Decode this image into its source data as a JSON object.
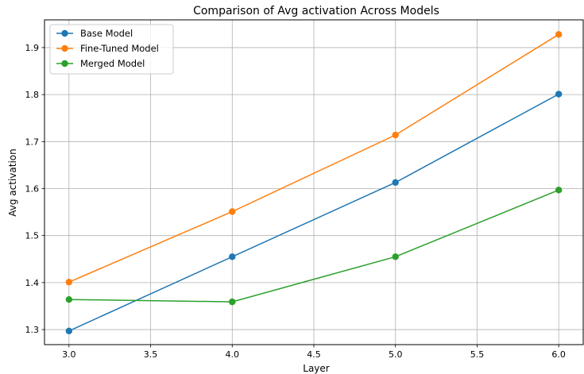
{
  "chart_data": {
    "type": "line",
    "title": "Comparison of Avg activation Across Models",
    "xlabel": "Layer",
    "ylabel": "Avg activation",
    "x": [
      3.0,
      4.0,
      5.0,
      6.0
    ],
    "xlim": [
      2.85,
      6.15
    ],
    "ylim": [
      1.268,
      1.959
    ],
    "xticks": [
      "3.0",
      "3.5",
      "4.0",
      "4.5",
      "5.0",
      "5.5",
      "6.0"
    ],
    "yticks": [
      "1.3",
      "1.4",
      "1.5",
      "1.6",
      "1.7",
      "1.8",
      "1.9"
    ],
    "grid": true,
    "legend_position": "top-left",
    "series": [
      {
        "name": "Base Model",
        "color": "#1f77b4",
        "values": [
          1.297,
          1.455,
          1.613,
          1.801
        ]
      },
      {
        "name": "Fine-Tuned Model",
        "color": "#ff7f0e",
        "values": [
          1.401,
          1.551,
          1.714,
          1.928
        ]
      },
      {
        "name": "Merged Model",
        "color": "#2ca02c",
        "values": [
          1.364,
          1.359,
          1.455,
          1.597
        ]
      }
    ]
  }
}
